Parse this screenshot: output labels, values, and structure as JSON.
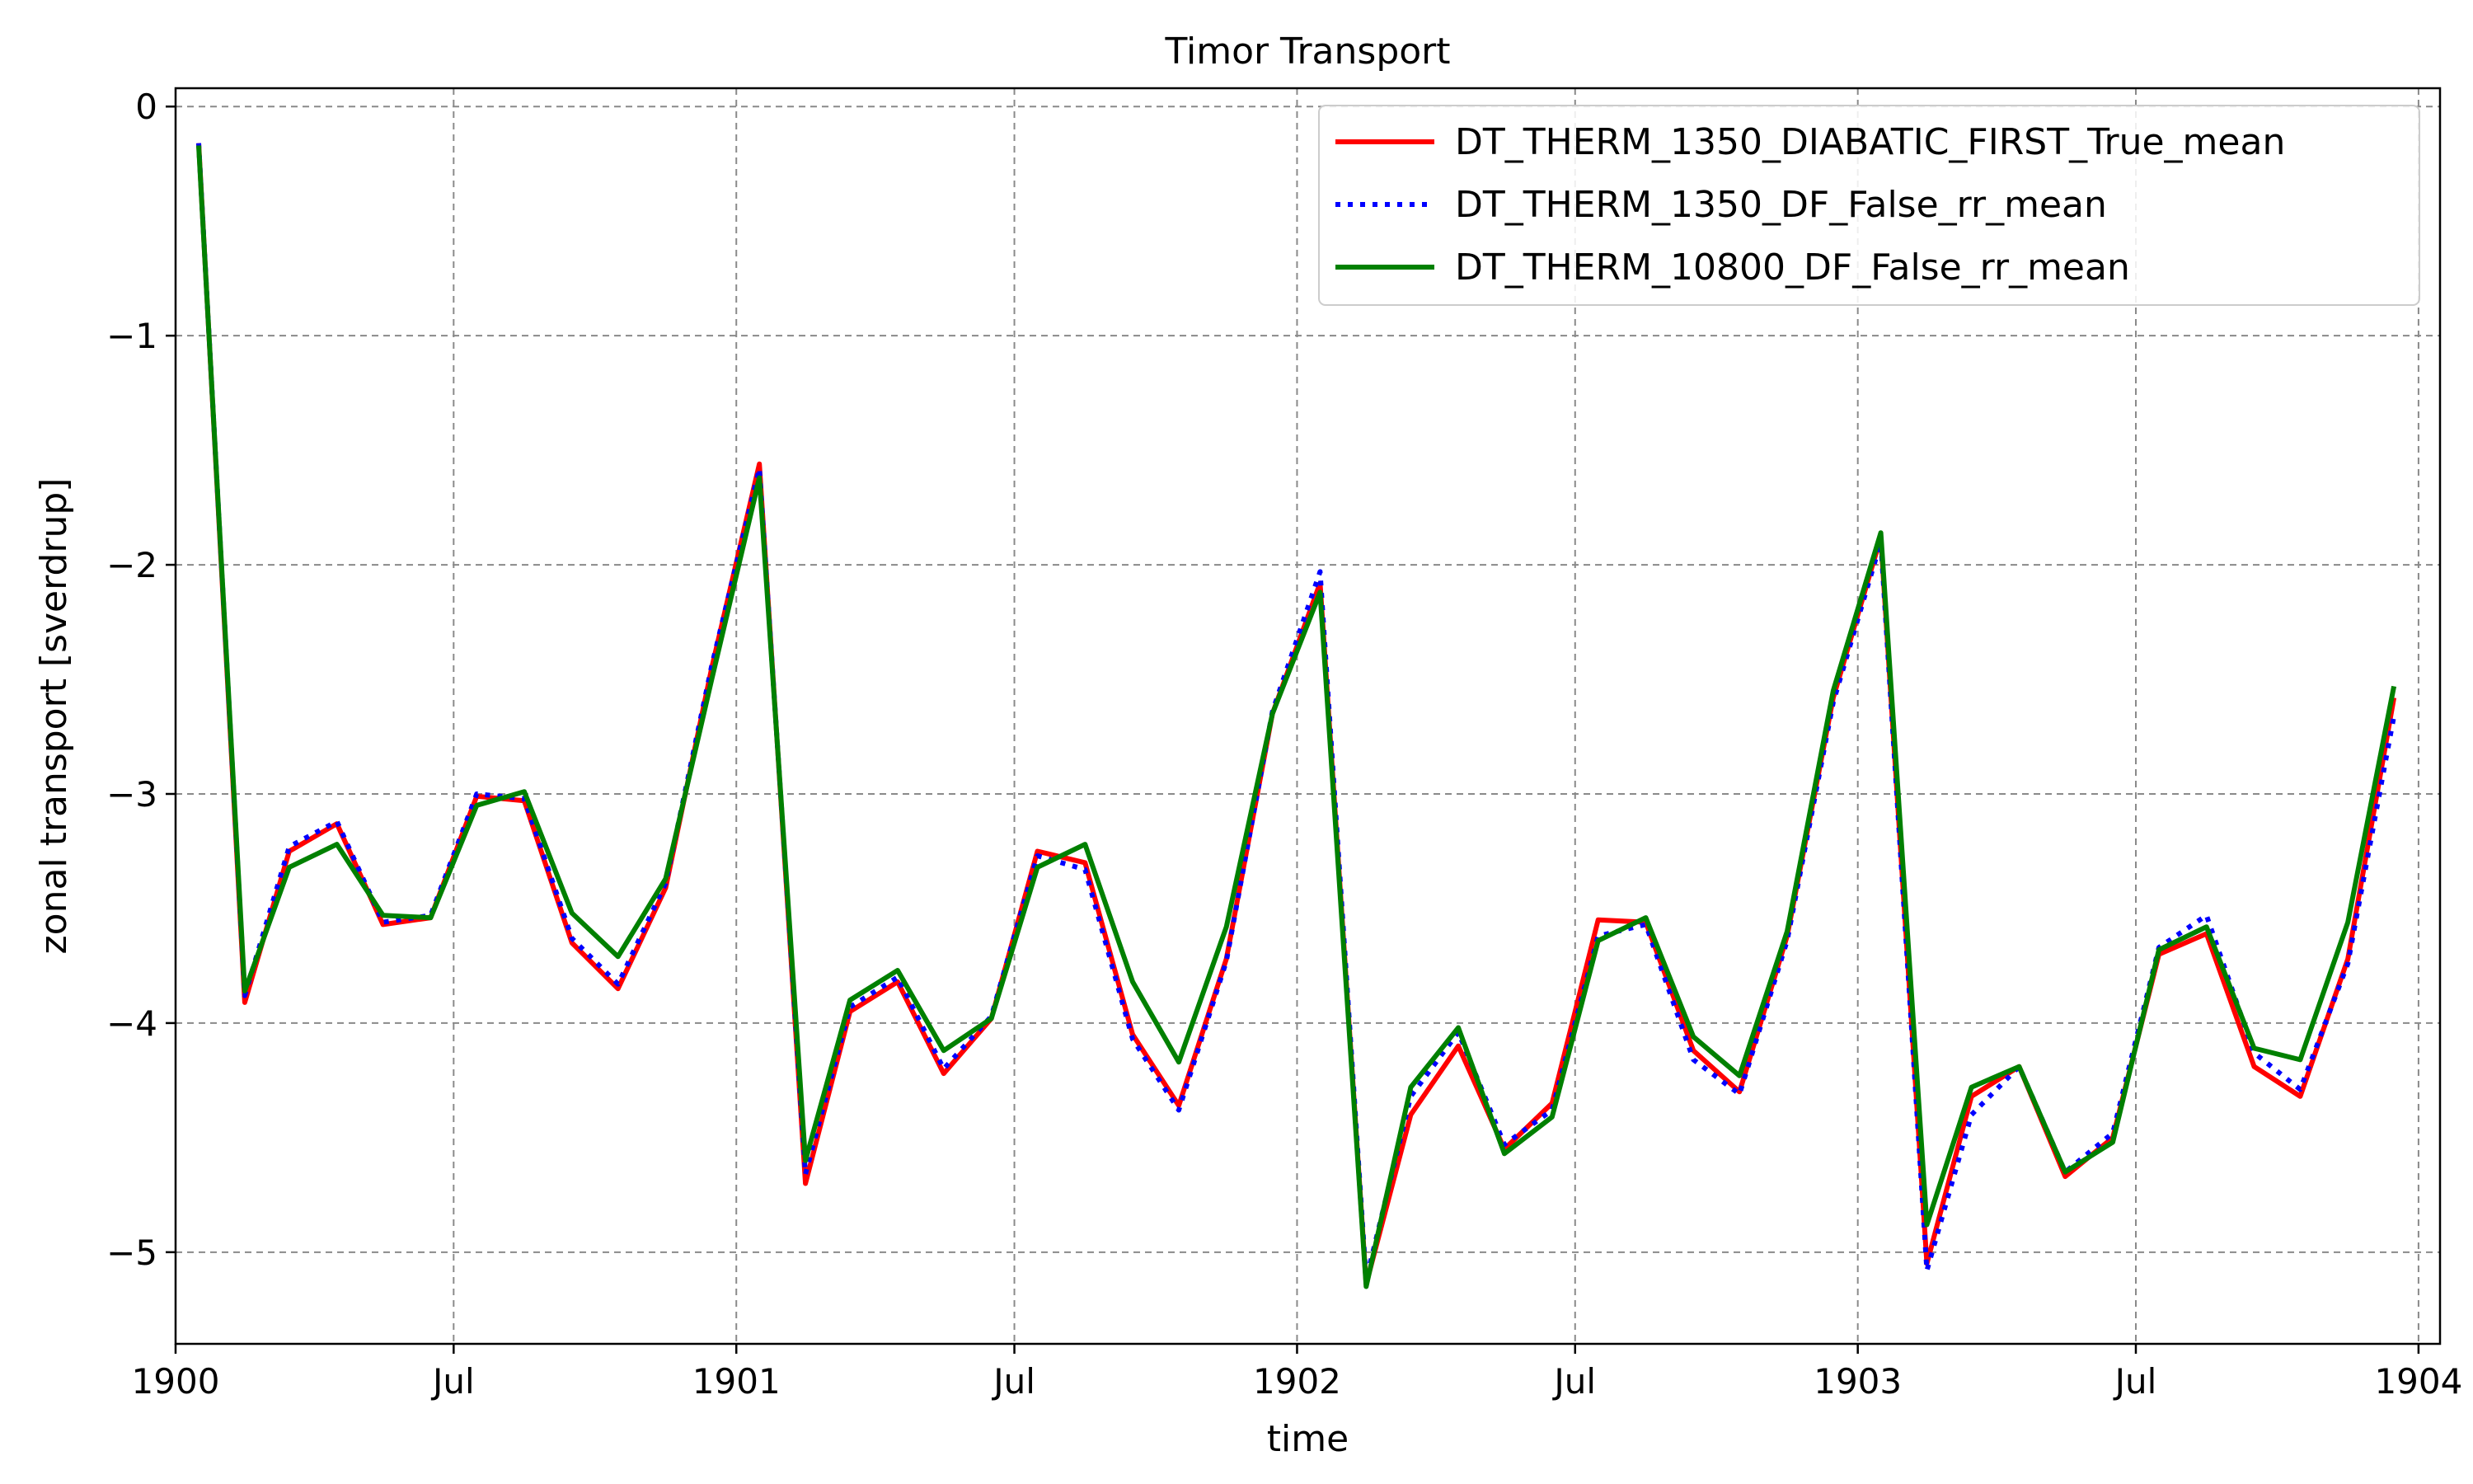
{
  "chart_data": {
    "type": "line",
    "title": "Timor Transport",
    "xlabel": "time",
    "ylabel": "zonal transport [sverdrup]",
    "xlim": [
      "1900-01-01",
      "1904-01-15"
    ],
    "ylim": [
      -5.4,
      0.08
    ],
    "grid": true,
    "legend_position": "top-right",
    "x_ticks": [
      {
        "date": "1900-01-01",
        "label": "1900"
      },
      {
        "date": "1900-07-01",
        "label": "Jul"
      },
      {
        "date": "1901-01-01",
        "label": "1901"
      },
      {
        "date": "1901-07-01",
        "label": "Jul"
      },
      {
        "date": "1902-01-01",
        "label": "1902"
      },
      {
        "date": "1902-07-01",
        "label": "Jul"
      },
      {
        "date": "1903-01-01",
        "label": "1903"
      },
      {
        "date": "1903-07-01",
        "label": "Jul"
      },
      {
        "date": "1904-01-01",
        "label": "1904"
      }
    ],
    "y_ticks": [
      {
        "value": 0,
        "label": "0"
      },
      {
        "value": -1,
        "label": "−1"
      },
      {
        "value": -2,
        "label": "−2"
      },
      {
        "value": -3,
        "label": "−3"
      },
      {
        "value": -4,
        "label": "−4"
      },
      {
        "value": -5,
        "label": "−5"
      }
    ],
    "x": [
      "1900-01-16",
      "1900-02-15",
      "1900-03-16",
      "1900-04-16",
      "1900-05-16",
      "1900-06-16",
      "1900-07-16",
      "1900-08-16",
      "1900-09-16",
      "1900-10-16",
      "1900-11-16",
      "1900-12-16",
      "1901-01-16",
      "1901-02-15",
      "1901-03-16",
      "1901-04-16",
      "1901-05-16",
      "1901-06-16",
      "1901-07-16",
      "1901-08-16",
      "1901-09-16",
      "1901-10-16",
      "1901-11-16",
      "1901-12-16",
      "1902-01-16",
      "1902-02-15",
      "1902-03-16",
      "1902-04-16",
      "1902-05-16",
      "1902-06-16",
      "1902-07-16",
      "1902-08-16",
      "1902-09-16",
      "1902-10-16",
      "1902-11-16",
      "1902-12-16",
      "1903-01-16",
      "1903-02-15",
      "1903-03-16",
      "1903-04-16",
      "1903-05-16",
      "1903-06-16",
      "1903-07-16",
      "1903-08-16",
      "1903-09-16",
      "1903-10-16",
      "1903-11-16",
      "1903-12-16"
    ],
    "series": [
      {
        "name": "DT_THERM_1350_DIABATIC_FIRST_True_mean",
        "color": "#ff0000",
        "style": "solid",
        "values": [
          -0.16,
          -3.91,
          -3.25,
          -3.13,
          -3.57,
          -3.54,
          -3.01,
          -3.03,
          -3.65,
          -3.85,
          -3.41,
          -2.45,
          -1.56,
          -4.7,
          -3.95,
          -3.82,
          -4.22,
          -3.98,
          -3.25,
          -3.3,
          -4.05,
          -4.36,
          -3.72,
          -2.65,
          -2.08,
          -5.14,
          -4.4,
          -4.1,
          -4.55,
          -4.35,
          -3.55,
          -3.56,
          -4.12,
          -4.3,
          -3.62,
          -2.58,
          -1.88,
          -5.05,
          -4.32,
          -4.19,
          -4.67,
          -4.5,
          -3.7,
          -3.61,
          -4.19,
          -4.32,
          -3.72,
          -2.58
        ]
      },
      {
        "name": "DT_THERM_1350_DF_False_rr_mean",
        "color": "#0000ff",
        "style": "dotted",
        "values": [
          -0.16,
          -3.88,
          -3.23,
          -3.12,
          -3.56,
          -3.53,
          -3.0,
          -3.02,
          -3.63,
          -3.83,
          -3.39,
          -2.44,
          -1.58,
          -4.66,
          -3.93,
          -3.8,
          -4.2,
          -3.97,
          -3.27,
          -3.33,
          -4.07,
          -4.38,
          -3.73,
          -2.64,
          -2.03,
          -5.12,
          -4.32,
          -4.04,
          -4.53,
          -4.38,
          -3.62,
          -3.57,
          -4.16,
          -4.31,
          -3.64,
          -2.6,
          -1.9,
          -5.08,
          -4.4,
          -4.19,
          -4.65,
          -4.48,
          -3.67,
          -3.53,
          -4.13,
          -4.29,
          -3.74,
          -2.66
        ]
      },
      {
        "name": "DT_THERM_10800_DF_False_rr_mean",
        "color": "#008000",
        "style": "solid",
        "values": [
          -0.17,
          -3.86,
          -3.32,
          -3.22,
          -3.53,
          -3.54,
          -3.05,
          -2.99,
          -3.52,
          -3.71,
          -3.37,
          -2.5,
          -1.62,
          -4.6,
          -3.9,
          -3.77,
          -4.12,
          -3.98,
          -3.32,
          -3.22,
          -3.82,
          -4.17,
          -3.58,
          -2.65,
          -2.12,
          -5.15,
          -4.28,
          -4.02,
          -4.57,
          -4.41,
          -3.64,
          -3.54,
          -4.06,
          -4.23,
          -3.6,
          -2.55,
          -1.86,
          -4.88,
          -4.28,
          -4.19,
          -4.65,
          -4.52,
          -3.68,
          -3.58,
          -4.11,
          -4.16,
          -3.56,
          -2.53
        ]
      }
    ]
  }
}
